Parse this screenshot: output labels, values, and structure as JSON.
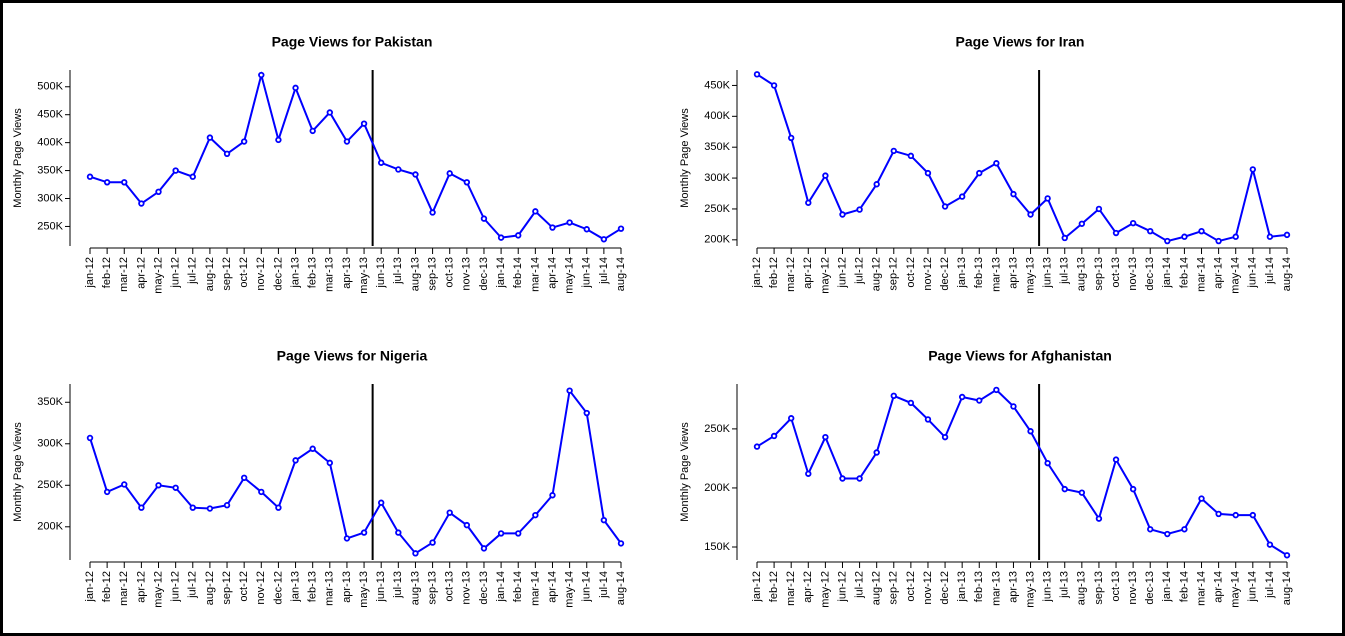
{
  "chart_data": [
    {
      "type": "line",
      "title": "Page Views for Pakistan",
      "ylabel": "Monthly Page Views",
      "color": "#0000ff",
      "categories": [
        "jan-12",
        "feb-12",
        "mar-12",
        "apr-12",
        "may-12",
        "jun-12",
        "jul-12",
        "aug-12",
        "sep-12",
        "oct-12",
        "nov-12",
        "dec-12",
        "jan-13",
        "feb-13",
        "mar-13",
        "apr-13",
        "may-13",
        "jun-13",
        "jul-13",
        "aug-13",
        "sep-13",
        "oct-13",
        "nov-13",
        "dec-13",
        "jan-14",
        "feb-14",
        "mar-14",
        "apr-14",
        "may-14",
        "jun-14",
        "jul-14",
        "aug-14"
      ],
      "values": [
        339000,
        329000,
        329000,
        291000,
        312000,
        350000,
        339000,
        409000,
        380000,
        402000,
        521000,
        405000,
        498000,
        421000,
        454000,
        402000,
        434000,
        364000,
        352000,
        343000,
        275000,
        345000,
        329000,
        264000,
        230000,
        234000,
        277000,
        248000,
        257000,
        245000,
        227000,
        246000
      ],
      "vline_at": 16.5,
      "ylim": [
        215000,
        530000
      ],
      "yticks": [
        {
          "value": 250000,
          "label": "250K"
        },
        {
          "value": 300000,
          "label": "300K"
        },
        {
          "value": 350000,
          "label": "350K"
        },
        {
          "value": 400000,
          "label": "400K"
        },
        {
          "value": 450000,
          "label": "450K"
        },
        {
          "value": 500000,
          "label": "500K"
        }
      ]
    },
    {
      "type": "line",
      "title": "Page Views for Iran",
      "ylabel": "Monthly Page Views",
      "color": "#0000ff",
      "categories": [
        "jan-12",
        "feb-12",
        "mar-12",
        "apr-12",
        "may-12",
        "jun-12",
        "jul-12",
        "aug-12",
        "sep-12",
        "oct-12",
        "nov-12",
        "dec-12",
        "jan-13",
        "feb-13",
        "mar-13",
        "apr-13",
        "may-13",
        "jun-13",
        "jul-13",
        "aug-13",
        "sep-13",
        "oct-13",
        "nov-13",
        "dec-13",
        "jan-14",
        "feb-14",
        "mar-14",
        "apr-14",
        "may-14",
        "jun-14",
        "jul-14",
        "aug-14"
      ],
      "values": [
        468000,
        450000,
        365000,
        260000,
        304000,
        241000,
        249000,
        290000,
        344000,
        336000,
        308000,
        254000,
        270000,
        308000,
        324000,
        274000,
        241000,
        267000,
        203000,
        226000,
        250000,
        211000,
        227000,
        214000,
        198000,
        205000,
        214000,
        198000,
        205000,
        314000,
        205000,
        208000
      ],
      "vline_at": 16.5,
      "ylim": [
        190000,
        475000
      ],
      "yticks": [
        {
          "value": 200000,
          "label": "200K"
        },
        {
          "value": 250000,
          "label": "250K"
        },
        {
          "value": 300000,
          "label": "300K"
        },
        {
          "value": 350000,
          "label": "350K"
        },
        {
          "value": 400000,
          "label": "400K"
        },
        {
          "value": 450000,
          "label": "450K"
        }
      ]
    },
    {
      "type": "line",
      "title": "Page Views for Nigeria",
      "ylabel": "Monthly Page Views",
      "color": "#0000ff",
      "categories": [
        "jan-12",
        "feb-12",
        "mar-12",
        "apr-12",
        "may-12",
        "jun-12",
        "jul-12",
        "aug-12",
        "sep-12",
        "oct-12",
        "nov-12",
        "dec-12",
        "jan-13",
        "feb-13",
        "mar-13",
        "apr-13",
        "may-13",
        "jun-13",
        "jul-13",
        "aug-13",
        "sep-13",
        "oct-13",
        "nov-13",
        "dec-13",
        "jan-14",
        "feb-14",
        "mar-14",
        "apr-14",
        "may-14",
        "jun-14",
        "jul-14",
        "aug-14"
      ],
      "values": [
        307000,
        242000,
        251000,
        223000,
        250000,
        247000,
        223000,
        222000,
        226000,
        259000,
        242000,
        223000,
        280000,
        294000,
        277000,
        186000,
        193000,
        229000,
        193000,
        168000,
        181000,
        217000,
        202000,
        174000,
        192000,
        192000,
        214000,
        238000,
        364000,
        337000,
        208000,
        180000
      ],
      "vline_at": 16.5,
      "ylim": [
        160000,
        372000
      ],
      "yticks": [
        {
          "value": 200000,
          "label": "200K"
        },
        {
          "value": 250000,
          "label": "250K"
        },
        {
          "value": 300000,
          "label": "300K"
        },
        {
          "value": 350000,
          "label": "350K"
        }
      ]
    },
    {
      "type": "line",
      "title": "Page Views for Afghanistan",
      "ylabel": "Monthly Page Views",
      "color": "#0000ff",
      "categories": [
        "jan-12",
        "feb-12",
        "mar-12",
        "apr-12",
        "may-12",
        "jun-12",
        "jul-12",
        "aug-12",
        "sep-12",
        "oct-12",
        "nov-12",
        "dec-12",
        "jan-13",
        "feb-13",
        "mar-13",
        "apr-13",
        "may-13",
        "jun-13",
        "jul-13",
        "aug-13",
        "sep-13",
        "oct-13",
        "nov-13",
        "dec-13",
        "jan-14",
        "feb-14",
        "mar-14",
        "apr-14",
        "may-14",
        "jun-14",
        "jul-14",
        "aug-14"
      ],
      "values": [
        235000,
        244000,
        259000,
        212000,
        243000,
        208000,
        208000,
        230000,
        278000,
        272000,
        258000,
        243000,
        277000,
        274000,
        283000,
        269000,
        248000,
        221000,
        199000,
        196000,
        174000,
        224000,
        199000,
        165000,
        161000,
        165000,
        191000,
        178000,
        177000,
        177000,
        152000,
        143000
      ],
      "vline_at": 16.5,
      "ylim": [
        139000,
        288000
      ],
      "yticks": [
        {
          "value": 150000,
          "label": "150K"
        },
        {
          "value": 200000,
          "label": "200K"
        },
        {
          "value": 250000,
          "label": "250K"
        }
      ]
    }
  ]
}
